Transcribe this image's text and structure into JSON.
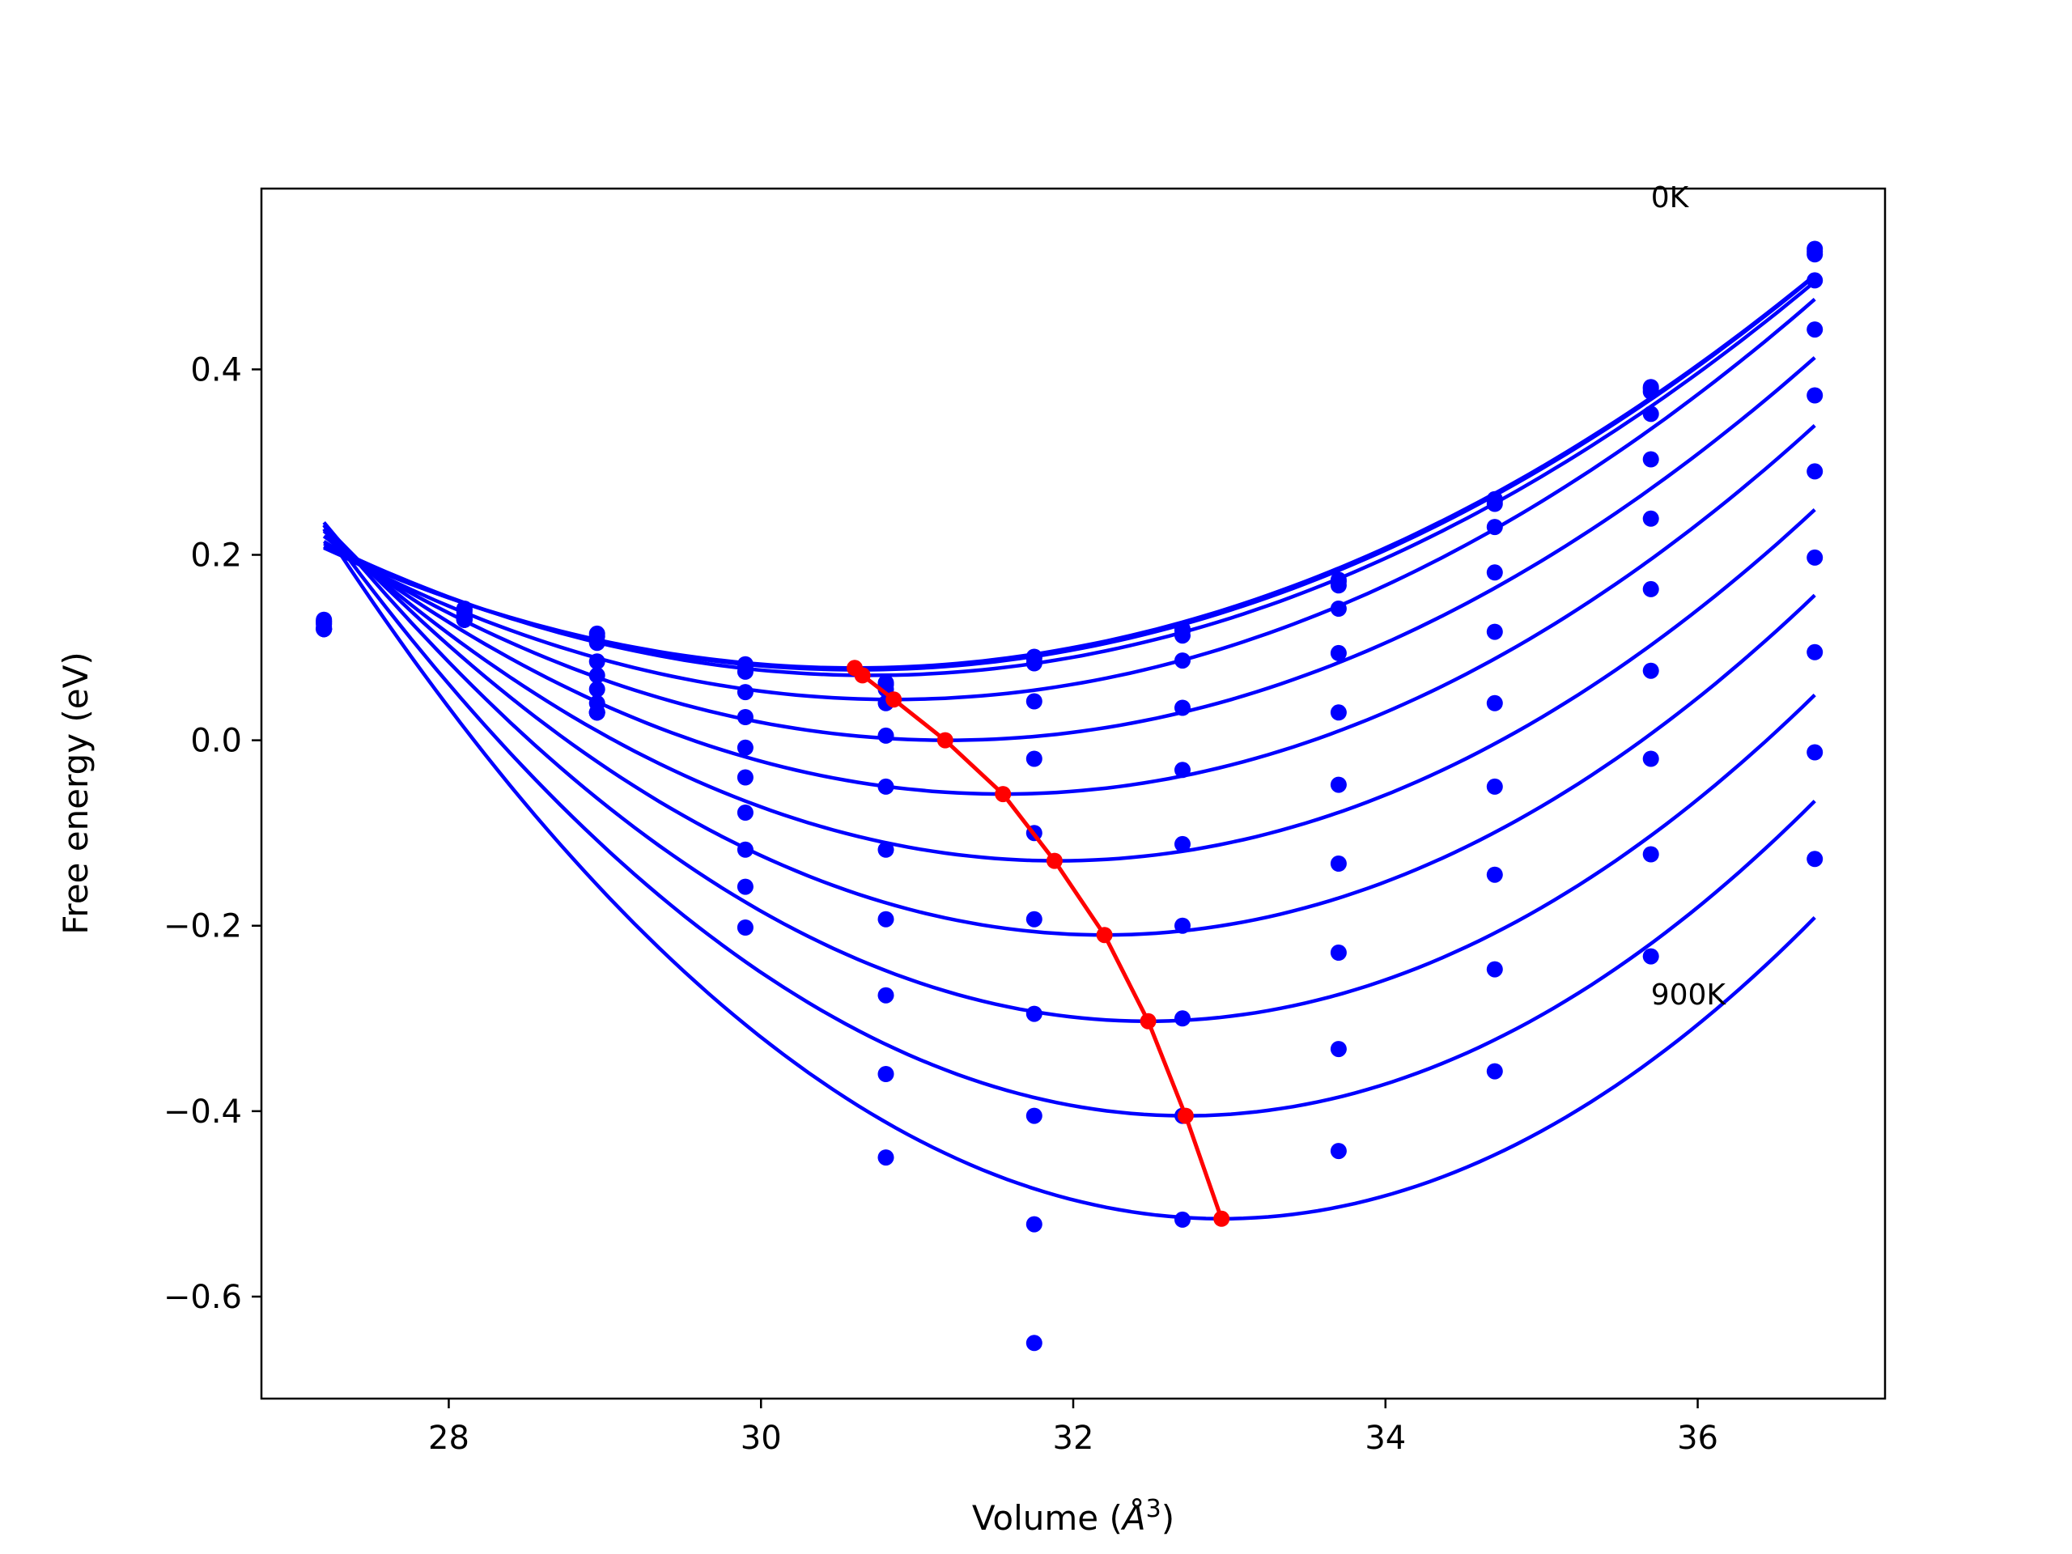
{
  "chart_data": {
    "type": "line",
    "xlabel": "Volume (",
    "xlabel_unit": "Å",
    "xlabel_sup": "3",
    "xlabel_close": ")",
    "ylabel": "Free energy (eV)",
    "xlim": [
      26.8,
      37.2
    ],
    "ylim": [
      -0.71,
      0.595
    ],
    "xticks": [
      28,
      30,
      32,
      34,
      36
    ],
    "xtick_labels": [
      "28",
      "30",
      "32",
      "34",
      "36"
    ],
    "yticks": [
      -0.6,
      -0.4,
      -0.2,
      0.0,
      0.2,
      0.4
    ],
    "ytick_labels": [
      "−0.6",
      "−0.4",
      "−0.2",
      "0.0",
      "0.2",
      "0.4"
    ],
    "grid": false,
    "colors": {
      "curves": "#0000ff",
      "minimum": "#ff0000",
      "axes": "#000000"
    },
    "annotations": [
      {
        "text": "0K",
        "x": 35.7,
        "y": 0.575
      },
      {
        "text": "900K",
        "x": 35.7,
        "y": -0.285
      }
    ],
    "volumes": [
      27.2,
      28.1,
      28.95,
      29.9,
      30.8,
      31.75,
      32.7,
      33.7,
      34.7,
      35.7,
      36.75
    ],
    "curve_fit_range": [
      27.2,
      36.75
    ],
    "series": [
      {
        "fit": {
          "V0": 30.6,
          "E0": 0.078,
          "a": 0.0112
        },
        "points": [
          0.13,
          0.142,
          0.115,
          0.082,
          0.062,
          0.09,
          0.12,
          0.173,
          0.26,
          0.381,
          0.53
        ]
      },
      {
        "fit": {
          "V0": 30.62,
          "E0": 0.076,
          "a": 0.0113
        },
        "points": [
          0.128,
          0.141,
          0.112,
          0.08,
          0.06,
          0.088,
          0.118,
          0.171,
          0.258,
          0.379,
          0.527
        ]
      },
      {
        "fit": {
          "V0": 30.7,
          "E0": 0.07,
          "a": 0.0116
        },
        "points": [
          0.126,
          0.14,
          0.105,
          0.074,
          0.055,
          0.083,
          0.113,
          0.167,
          0.255,
          0.376,
          0.524
        ]
      },
      {
        "fit": {
          "V0": 30.85,
          "E0": 0.044,
          "a": 0.0124
        },
        "points": [
          0.128,
          0.138,
          0.085,
          0.052,
          0.04,
          0.042,
          0.086,
          0.142,
          0.23,
          0.352,
          0.496
        ]
      },
      {
        "fit": {
          "V0": 31.2,
          "E0": 0.0,
          "a": 0.0134
        },
        "points": [
          0.125,
          0.135,
          0.07,
          0.025,
          0.005,
          -0.02,
          0.035,
          0.094,
          0.181,
          0.303,
          0.443
        ]
      },
      {
        "fit": {
          "V0": 31.55,
          "E0": -0.058,
          "a": 0.0147
        },
        "points": [
          0.122,
          0.132,
          0.055,
          -0.008,
          -0.05,
          -0.1,
          -0.032,
          0.03,
          0.117,
          0.239,
          0.372
        ]
      },
      {
        "fit": {
          "V0": 31.9,
          "E0": -0.13,
          "a": 0.0161
        },
        "points": [
          0.12,
          0.13,
          0.04,
          -0.04,
          -0.118,
          -0.193,
          -0.112,
          -0.048,
          0.04,
          0.163,
          0.29
        ]
      },
      {
        "fit": {
          "V0": 32.2,
          "E0": -0.21,
          "a": 0.0177
        },
        "points": [
          0.12,
          0.13,
          0.03,
          -0.078,
          -0.193,
          -0.295,
          -0.2,
          -0.133,
          -0.05,
          0.075,
          0.197
        ]
      },
      {
        "fit": {
          "V0": 32.48,
          "E0": -0.303,
          "a": 0.0193
        },
        "points": [
          0.12,
          0.13,
          0.03,
          -0.118,
          -0.275,
          -0.405,
          -0.3,
          -0.229,
          -0.145,
          -0.02,
          0.095
        ]
      },
      {
        "fit": {
          "V0": 32.72,
          "E0": -0.405,
          "a": 0.0209
        },
        "points": [
          0.12,
          0.13,
          0.03,
          -0.158,
          -0.36,
          -0.522,
          -0.405,
          -0.333,
          -0.247,
          -0.123,
          -0.013
        ]
      },
      {
        "fit": {
          "V0": 32.95,
          "E0": -0.516,
          "a": 0.0225
        },
        "points": [
          0.12,
          0.13,
          0.03,
          -0.202,
          -0.45,
          -0.65,
          -0.517,
          -0.443,
          -0.357,
          -0.233,
          -0.128
        ]
      }
    ],
    "minimum_curve": {
      "x": [
        30.6,
        30.65,
        30.85,
        31.18,
        31.55,
        31.88,
        32.2,
        32.48,
        32.72,
        32.95
      ],
      "y": [
        0.078,
        0.07,
        0.044,
        0.0,
        -0.058,
        -0.13,
        -0.21,
        -0.303,
        -0.405,
        -0.516
      ]
    }
  }
}
